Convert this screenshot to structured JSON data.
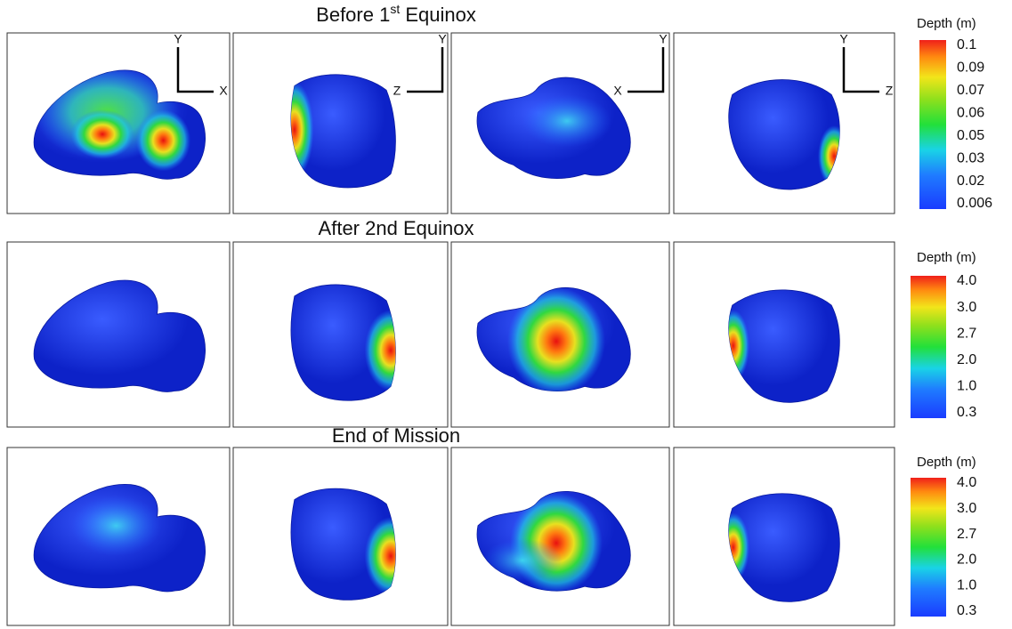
{
  "rows": [
    {
      "title": "Before 1",
      "title_sup": "st",
      "title_rest": " Equinox",
      "colorbar": {
        "label": "Depth (m)",
        "ticks": [
          "0.1",
          "0.09",
          "0.07",
          "0.06",
          "0.05",
          "0.03",
          "0.02",
          "0.006"
        ]
      }
    },
    {
      "title": "After 2nd Equinox",
      "colorbar": {
        "label": "Depth (m)",
        "ticks": [
          "4.0",
          "3.0",
          "2.7",
          "2.0",
          "1.0",
          "0.3"
        ]
      }
    },
    {
      "title": "End of Mission",
      "colorbar": {
        "label": "Depth (m)",
        "ticks": [
          "4.0",
          "3.0",
          "2.7",
          "2.0",
          "1.0",
          "0.3"
        ]
      }
    }
  ],
  "axes": [
    {
      "vertical": "Y",
      "horizontal": "X"
    },
    {
      "vertical": "Y",
      "horizontal": "Z"
    },
    {
      "vertical": "Y",
      "horizontal": "X"
    },
    {
      "vertical": "Y",
      "horizontal": "Z"
    }
  ]
}
